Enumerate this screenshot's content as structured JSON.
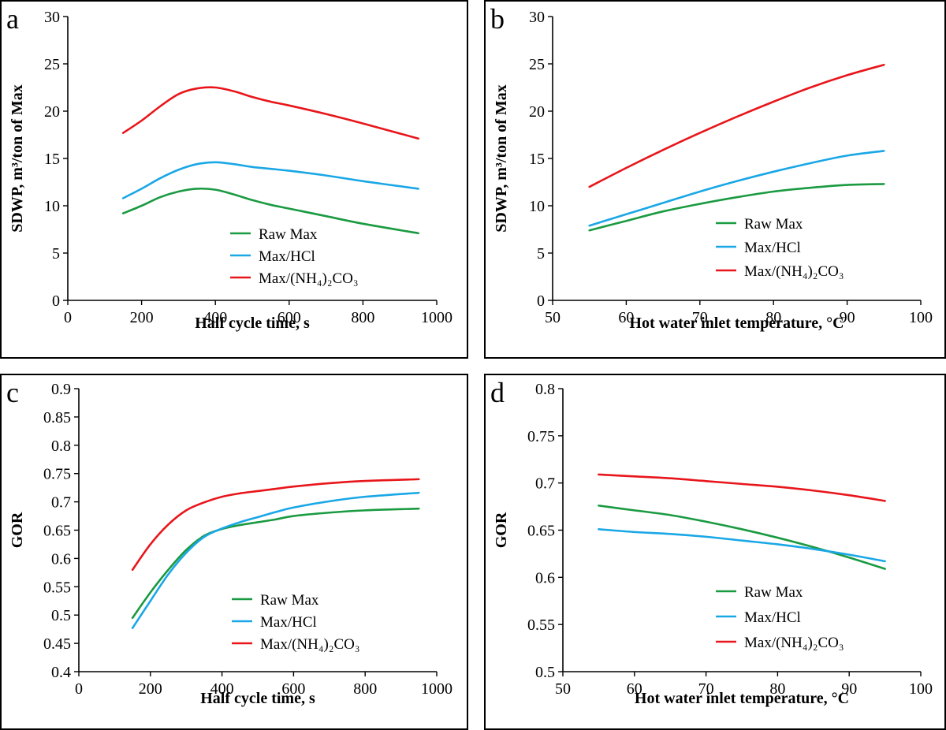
{
  "colors": {
    "Raw Max": "#1a9a41",
    "Max/HCl": "#1aa7e6",
    "Max/(NH₄)₂CO₃": "#e8161b",
    "axis": "#000000"
  },
  "chart_data": [
    {
      "panel": "a",
      "type": "line",
      "xlabel": "Half cycle time, s",
      "ylabel": "SDWP, m³/ton of Max",
      "xlim": [
        0,
        1000
      ],
      "ylim": [
        0,
        30
      ],
      "xticks": [
        0,
        200,
        400,
        600,
        800,
        1000
      ],
      "yticks": [
        0,
        5,
        10,
        15,
        20,
        25,
        30
      ],
      "legend_position": "bottom-right",
      "series": [
        {
          "name": "Raw Max",
          "x": [
            150,
            200,
            250,
            300,
            350,
            400,
            450,
            500,
            550,
            600,
            700,
            800,
            950
          ],
          "values": [
            9.2,
            10.0,
            10.9,
            11.5,
            11.8,
            11.7,
            11.2,
            10.6,
            10.1,
            9.7,
            8.9,
            8.1,
            7.1
          ]
        },
        {
          "name": "Max/HCl",
          "x": [
            150,
            200,
            250,
            300,
            350,
            400,
            450,
            500,
            550,
            600,
            700,
            800,
            950
          ],
          "values": [
            10.8,
            11.8,
            12.9,
            13.8,
            14.4,
            14.6,
            14.4,
            14.1,
            13.9,
            13.7,
            13.2,
            12.6,
            11.8
          ]
        },
        {
          "name": "Max/(NH₄)₂CO₃",
          "x": [
            150,
            200,
            250,
            300,
            350,
            400,
            450,
            500,
            550,
            600,
            700,
            800,
            950
          ],
          "values": [
            17.7,
            19.0,
            20.5,
            21.8,
            22.4,
            22.5,
            22.1,
            21.5,
            21.0,
            20.6,
            19.7,
            18.7,
            17.1
          ]
        }
      ]
    },
    {
      "panel": "b",
      "type": "line",
      "xlabel": "Hot water inlet temperature, °C",
      "ylabel": "SDWP, m³/ton of Max",
      "xlim": [
        50,
        100
      ],
      "ylim": [
        0,
        30
      ],
      "xticks": [
        50,
        60,
        70,
        80,
        90,
        100
      ],
      "yticks": [
        0,
        5,
        10,
        15,
        20,
        25,
        30
      ],
      "legend_position": "bottom-right",
      "series": [
        {
          "name": "Raw Max",
          "x": [
            55,
            60,
            65,
            70,
            75,
            80,
            85,
            90,
            95
          ],
          "values": [
            7.4,
            8.4,
            9.4,
            10.2,
            10.9,
            11.5,
            11.9,
            12.2,
            12.3
          ]
        },
        {
          "name": "Max/HCl",
          "x": [
            55,
            60,
            65,
            70,
            75,
            80,
            85,
            90,
            95
          ],
          "values": [
            7.9,
            9.1,
            10.3,
            11.5,
            12.6,
            13.6,
            14.5,
            15.3,
            15.8
          ]
        },
        {
          "name": "Max/(NH₄)₂CO₃",
          "x": [
            55,
            60,
            65,
            70,
            75,
            80,
            85,
            90,
            95
          ],
          "values": [
            12.0,
            14.0,
            15.9,
            17.7,
            19.4,
            21.0,
            22.5,
            23.8,
            24.9
          ]
        }
      ]
    },
    {
      "panel": "c",
      "type": "line",
      "xlabel": "Half cycle time, s",
      "ylabel": "GOR",
      "xlim": [
        0,
        1000
      ],
      "ylim": [
        0.4,
        0.9
      ],
      "xticks": [
        0,
        200,
        400,
        600,
        800,
        1000
      ],
      "yticks": [
        0.4,
        0.45,
        0.5,
        0.55,
        0.6,
        0.65,
        0.7,
        0.75,
        0.8,
        0.85,
        0.9
      ],
      "legend_position": "bottom-right",
      "series": [
        {
          "name": "Raw Max",
          "x": [
            150,
            200,
            250,
            300,
            350,
            400,
            450,
            500,
            550,
            600,
            700,
            800,
            950
          ],
          "values": [
            0.495,
            0.54,
            0.58,
            0.615,
            0.64,
            0.652,
            0.659,
            0.664,
            0.669,
            0.675,
            0.681,
            0.685,
            0.688
          ]
        },
        {
          "name": "Max/HCl",
          "x": [
            150,
            200,
            250,
            300,
            350,
            400,
            450,
            500,
            550,
            600,
            700,
            800,
            950
          ],
          "values": [
            0.477,
            0.525,
            0.572,
            0.61,
            0.638,
            0.653,
            0.664,
            0.673,
            0.682,
            0.69,
            0.701,
            0.709,
            0.716
          ]
        },
        {
          "name": "Max/(NH₄)₂CO₃",
          "x": [
            150,
            200,
            250,
            300,
            350,
            400,
            450,
            500,
            550,
            600,
            700,
            800,
            950
          ],
          "values": [
            0.58,
            0.625,
            0.66,
            0.685,
            0.699,
            0.709,
            0.715,
            0.719,
            0.723,
            0.727,
            0.733,
            0.737,
            0.74
          ]
        }
      ]
    },
    {
      "panel": "d",
      "type": "line",
      "xlabel": "Hot water inlet temperature, °C",
      "ylabel": "GOR",
      "xlim": [
        50,
        100
      ],
      "ylim": [
        0.5,
        0.8
      ],
      "xticks": [
        50,
        60,
        70,
        80,
        90,
        100
      ],
      "yticks": [
        0.5,
        0.55,
        0.6,
        0.65,
        0.7,
        0.75,
        0.8
      ],
      "legend_position": "bottom-right",
      "series": [
        {
          "name": "Raw Max",
          "x": [
            55,
            60,
            65,
            70,
            75,
            80,
            85,
            90,
            95
          ],
          "values": [
            0.676,
            0.671,
            0.666,
            0.659,
            0.651,
            0.642,
            0.632,
            0.621,
            0.609
          ]
        },
        {
          "name": "Max/HCl",
          "x": [
            55,
            60,
            65,
            70,
            75,
            80,
            85,
            90,
            95
          ],
          "values": [
            0.651,
            0.648,
            0.646,
            0.643,
            0.639,
            0.635,
            0.63,
            0.624,
            0.617
          ]
        },
        {
          "name": "Max/(NH₄)₂CO₃",
          "x": [
            55,
            60,
            65,
            70,
            75,
            80,
            85,
            90,
            95
          ],
          "values": [
            0.709,
            0.707,
            0.705,
            0.702,
            0.699,
            0.696,
            0.692,
            0.687,
            0.681
          ]
        }
      ]
    }
  ]
}
